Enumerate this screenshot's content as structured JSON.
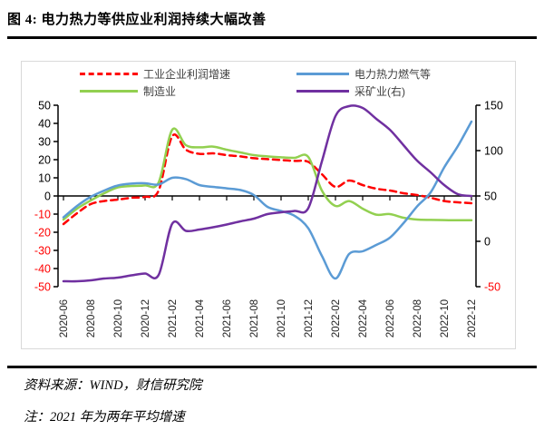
{
  "title": "图 4:  电力热力等供应业利润持续大幅改善",
  "footer": {
    "source": "资料来源：WIND，财信研究院",
    "note": "注：2021 年为两年平均增速"
  },
  "chart_data": {
    "type": "line",
    "title": "",
    "xlabel": "",
    "ylabel": "",
    "legend_position": "top",
    "grid": false,
    "x": [
      "2020-06",
      "2020-07",
      "2020-08",
      "2020-09",
      "2020-10",
      "2020-11",
      "2020-12",
      "2021-01",
      "2021-02",
      "2021-03",
      "2021-04",
      "2021-05",
      "2021-06",
      "2021-07",
      "2021-08",
      "2021-09",
      "2021-10",
      "2021-11",
      "2021-12",
      "2022-01",
      "2022-02",
      "2022-03",
      "2022-04",
      "2022-05",
      "2022-06",
      "2022-07",
      "2022-08",
      "2022-09",
      "2022-10",
      "2022-11",
      "2022-12"
    ],
    "x_tick_labels": [
      "2020-06",
      "2020-08",
      "2020-10",
      "2020-12",
      "2021-02",
      "2021-04",
      "2021-06",
      "2021-08",
      "2021-10",
      "2021-12",
      "2022-02",
      "2022-04",
      "2022-06",
      "2022-08",
      "2022-10",
      "2022-12"
    ],
    "left_axis": {
      "min": -50,
      "max": 50,
      "ticks": [
        50,
        40,
        30,
        20,
        10,
        0,
        -10,
        -20,
        -30,
        -40,
        -50
      ]
    },
    "right_axis": {
      "min": -50,
      "max": 150,
      "ticks": [
        150,
        100,
        50,
        0,
        -50
      ]
    },
    "negative_tick_color": "#ff0000",
    "positive_tick_color": "#000000",
    "series": [
      {
        "name": "工业企业利润增速",
        "axis": "left",
        "color": "#ff0000",
        "style": "dashed",
        "values": [
          -15.5,
          -9.5,
          -4.5,
          -2.8,
          -2,
          -1,
          -0.5,
          3,
          33,
          25.5,
          23.2,
          23.5,
          22.5,
          21.8,
          20.8,
          20.3,
          19.8,
          19.3,
          18.8,
          12,
          5,
          8.5,
          6,
          4,
          3,
          1.5,
          0.5,
          -1,
          -2.8,
          -3.5,
          -4
        ]
      },
      {
        "name": "制造业",
        "axis": "left",
        "color": "#92d050",
        "style": "solid",
        "values": [
          -13,
          -7,
          -2.5,
          1.5,
          4.7,
          5.5,
          5.8,
          7.5,
          36.5,
          28,
          26.8,
          27.2,
          25.5,
          24,
          22.5,
          21.8,
          21.3,
          21,
          21.5,
          3,
          -5.5,
          -2.8,
          -7,
          -10.3,
          -10,
          -12,
          -13,
          -13.2,
          -13.3,
          -13.4,
          -13.4
        ]
      },
      {
        "name": "电力热力燃气等",
        "axis": "left",
        "color": "#5b9bd5",
        "style": "solid",
        "values": [
          -11.8,
          -5.5,
          -0.5,
          3,
          5.8,
          6.8,
          7,
          6.3,
          10,
          9.3,
          6,
          5,
          4.2,
          3.3,
          0.5,
          -6,
          -8.3,
          -11,
          -17.8,
          -33,
          -45.5,
          -32,
          -30.5,
          -27,
          -23,
          -15,
          -5.8,
          2,
          15.8,
          27.5,
          41
        ]
      },
      {
        "name": "采矿业(右)",
        "axis": "right",
        "color": "#7030a0",
        "style": "solid",
        "values": [
          -44,
          -44,
          -43,
          -41,
          -40,
          -37.5,
          -35.5,
          -37,
          19.5,
          11.5,
          13,
          15.5,
          18.5,
          22,
          25,
          30,
          32,
          33.5,
          36.5,
          88,
          138,
          149,
          147,
          135,
          123,
          106,
          89,
          76,
          62,
          52,
          50
        ]
      }
    ]
  }
}
